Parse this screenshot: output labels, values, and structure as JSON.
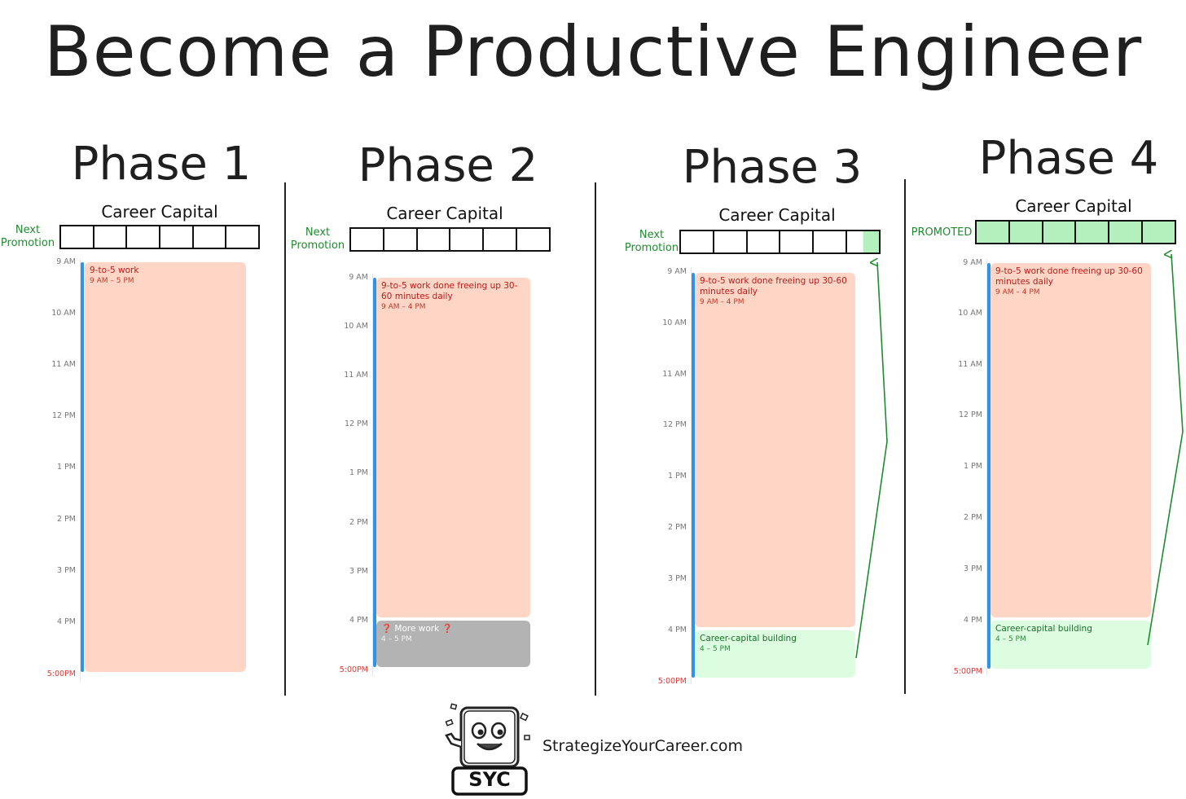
{
  "title": "Become a Productive Engineer",
  "career_capital_label": "Career Capital",
  "next_promotion_line1": "Next",
  "next_promotion_line2": "Promotion",
  "promoted_label": "PROMOTED",
  "hours": [
    "9 AM",
    "10 AM",
    "11 AM",
    "12 PM",
    "1 PM",
    "2 PM",
    "3 PM",
    "4 PM",
    "5:00PM"
  ],
  "phases": [
    {
      "name": "Phase 1",
      "capital_filled": 0,
      "events": [
        {
          "title": "9-to-5 work",
          "time": "9 AM – 5 PM",
          "kind": "work"
        }
      ]
    },
    {
      "name": "Phase 2",
      "capital_filled": 0,
      "events": [
        {
          "title": "9-to-5 work done freeing up 30-60 minutes daily",
          "time": "9 AM – 4 PM",
          "kind": "work"
        },
        {
          "title": "More work",
          "time": "4 – 5 PM",
          "kind": "more"
        }
      ]
    },
    {
      "name": "Phase 3",
      "capital_filled": 0.5,
      "events": [
        {
          "title": "9-to-5 work done freeing up 30-60 minutes daily",
          "time": "9 AM – 4 PM",
          "kind": "work"
        },
        {
          "title": "Career-capital building",
          "time": "4 – 5 PM",
          "kind": "capital"
        }
      ]
    },
    {
      "name": "Phase 4",
      "capital_filled": 6,
      "events": [
        {
          "title": "9-to-5 work done freeing up 30-60 minutes daily",
          "time": "9 AM – 4 PM",
          "kind": "work"
        },
        {
          "title": "Career-capital building",
          "time": "4 – 5 PM",
          "kind": "capital"
        }
      ]
    }
  ],
  "brand": {
    "logo_text": "SYC",
    "site": "StrategizeYourCareer.com"
  },
  "colors": {
    "work": "#ffd6c6",
    "more": "#b3b3b3",
    "capital": "#dcfde0",
    "filled_cell": "#b3f0bd",
    "arrow": "#1e8c2e",
    "stripe": "#2f94e6"
  }
}
